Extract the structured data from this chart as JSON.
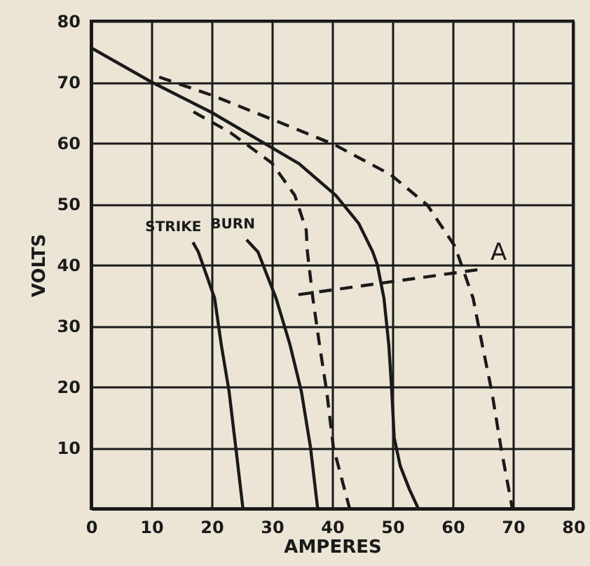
{
  "chart_data": {
    "type": "line",
    "xlabel": "AMPERES",
    "ylabel": "VOLTS",
    "xlim": [
      0,
      80
    ],
    "xticks": [
      0,
      10,
      20,
      30,
      40,
      50,
      60,
      70,
      80
    ],
    "ylim": [
      0,
      80
    ],
    "yticks": [
      10,
      20,
      30,
      40,
      50,
      60,
      70,
      80
    ],
    "grid": true,
    "marker": "none",
    "series": [
      {
        "color": "#1a1a1a",
        "line_style": "solid",
        "x": [
          0,
          10,
          20,
          30,
          34.5,
          40.6,
          44.4,
          46.7,
          47.5,
          48.6,
          49.4,
          49.9,
          50.3,
          51.3,
          52.8,
          54.3
        ],
        "values": [
          75.6,
          70,
          65,
          59.2,
          56.6,
          51.4,
          46.8,
          42.2,
          40,
          34.5,
          26.9,
          19.2,
          11.6,
          7,
          3.2,
          0
        ]
      },
      {
        "color": "#1a1a1a",
        "line_style": "dashed",
        "x": [
          11.3,
          20.1,
          30.7,
          40.2,
          49.7,
          55.8,
          60.4,
          61.1,
          63.4,
          64.9,
          66.5,
          68,
          69.9
        ],
        "values": [
          70.8,
          67.8,
          63.6,
          59.8,
          54.8,
          49.8,
          43,
          41,
          34.5,
          26.9,
          19.2,
          10.1,
          0
        ]
      },
      {
        "color": "#1a1a1a",
        "line_style": "dashed",
        "x": [
          17,
          23.1,
          30,
          33.8,
          35.7,
          35.9,
          36.8,
          37.9,
          39.1,
          40.2,
          42.9
        ],
        "values": [
          65.1,
          61.7,
          56.7,
          51.4,
          45.7,
          42.1,
          34.5,
          26.9,
          19.2,
          10.1,
          0
        ]
      },
      {
        "name": "STRIKE",
        "color": "#1a1a1a",
        "line_style": "solid",
        "x": [
          16.9,
          17.8,
          20.5,
          21.6,
          22.9,
          24,
          25.2
        ],
        "values": [
          43.7,
          42.1,
          34.5,
          26.9,
          19.2,
          10.1,
          0
        ]
      },
      {
        "name": "BURN",
        "color": "#1a1a1a",
        "line_style": "solid",
        "x": [
          25.8,
          27.7,
          30.7,
          33,
          34.9,
          36.4,
          37.6
        ],
        "values": [
          44.1,
          42.1,
          34.5,
          26.9,
          19.2,
          10.1,
          0
        ]
      },
      {
        "color": "#1a1a1a",
        "line_style": "dashed",
        "x": [
          34.4,
          64.2
        ],
        "values": [
          35.1,
          39.2
        ]
      }
    ],
    "annotations": [
      {
        "text": "A",
        "x": 64.2,
        "y": 39.2
      }
    ]
  }
}
